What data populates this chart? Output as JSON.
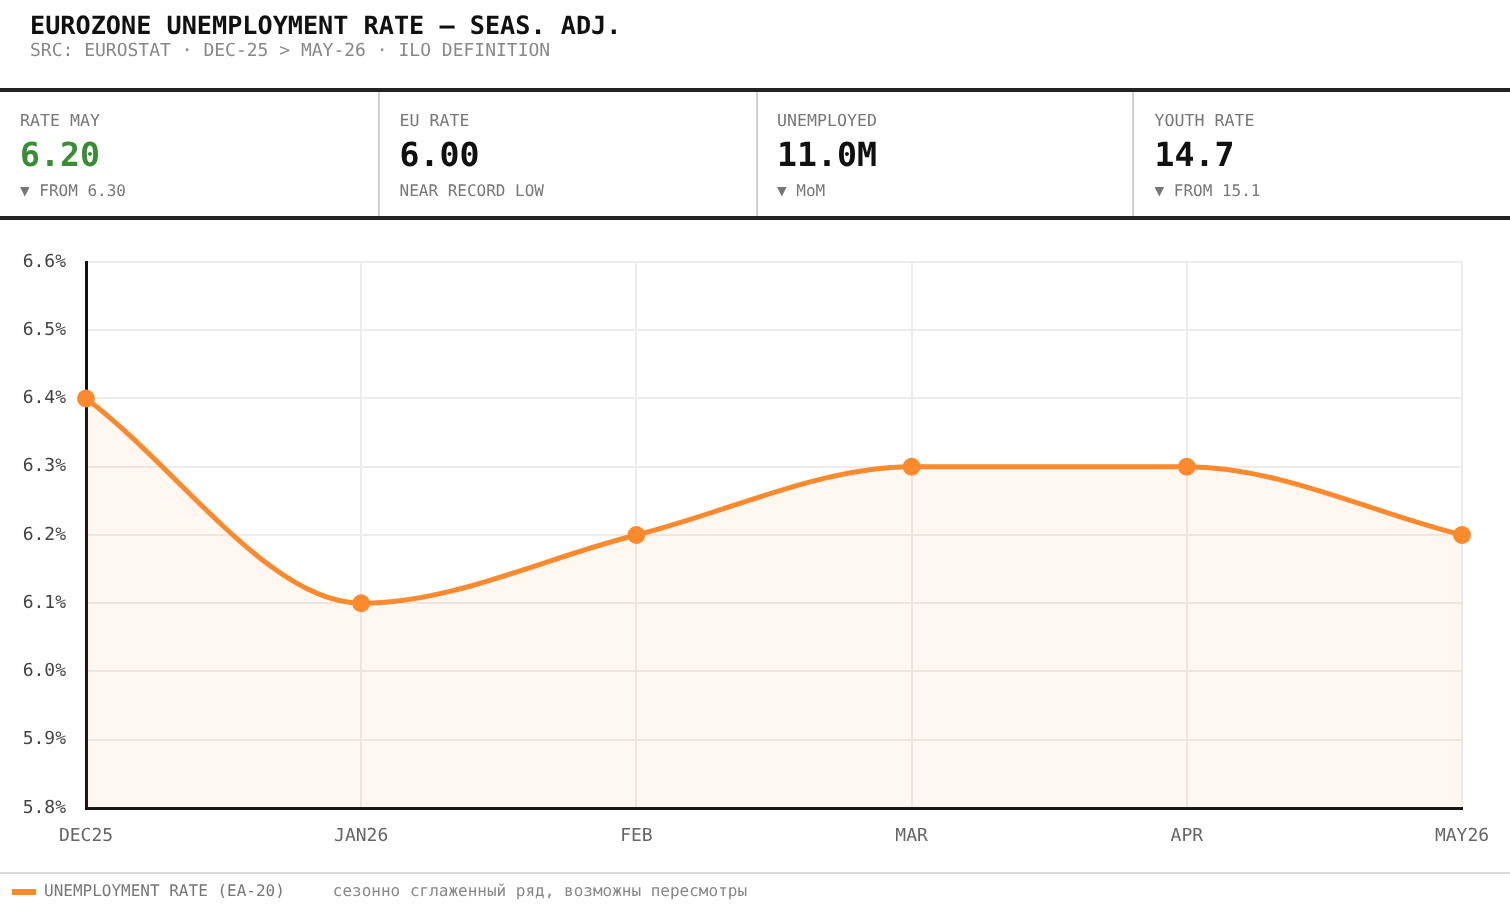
{
  "chart_data": [
    {
      "type": "other",
      "title": "EUROZONE UNEMPLOYMENT RATE — SEAS. ADJ.",
      "subtitle": "SRC: EUROSTAT · DEC-25 > MAY-26 · ILO DEFINITION",
      "annotations": [
        "RATE MAY",
        "6.20",
        "▼ FROM 6.30",
        "EU RATE",
        "6.00",
        "NEAR RECORD LOW",
        "UNEMPLOYED",
        "11.0M",
        "▼ MoM",
        "YOUTH RATE",
        "14.7",
        "▼ FROM 15.1"
      ]
    },
    {
      "type": "area",
      "categories": [
        "DEC25",
        "JAN26",
        "FEB",
        "MAR",
        "APR",
        "MAY26"
      ],
      "series": [
        {
          "name": "UNEMPLOYMENT RATE (EA-20)",
          "color": "#fb8a2e",
          "values": [
            6.4,
            6.1,
            6.2,
            6.3,
            6.3,
            6.2
          ]
        }
      ],
      "ylim": [
        5.8,
        6.6
      ],
      "yticks": [
        {
          "value": 5.8,
          "label": "5.8%"
        },
        {
          "value": 5.9,
          "label": "5.9%"
        },
        {
          "value": 6.0,
          "label": "6.0%"
        },
        {
          "value": 6.1,
          "label": "6.1%"
        },
        {
          "value": 6.2,
          "label": "6.2%"
        },
        {
          "value": 6.3,
          "label": "6.3%"
        },
        {
          "value": 6.4,
          "label": "6.4%"
        },
        {
          "value": 6.5,
          "label": "6.5%"
        },
        {
          "value": 6.6,
          "label": "6.6%"
        }
      ],
      "grid": true,
      "legend": "bottom left",
      "marker": "circle",
      "annotations": [
        "сезонно сглаженный ряд, возможны пересмотры"
      ]
    }
  ]
}
